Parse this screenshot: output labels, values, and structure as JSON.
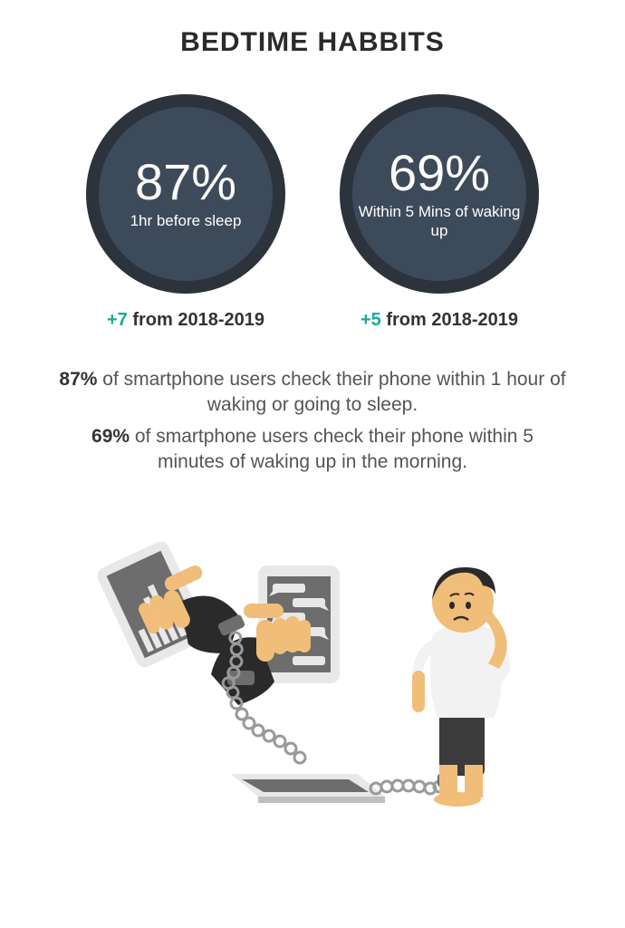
{
  "title": "BEDTIME HABBITS",
  "title_color": "#2a2a2a",
  "circles": [
    {
      "pct": "87%",
      "label": "1hr before sleep",
      "delta_value": "+7",
      "delta_text": " from 2018-2019",
      "delta_value_color": "#1aa99a",
      "delta_text_color": "#333333",
      "outer_ring_color": "#2c333d",
      "inner_fill_color": "#3d4a5a",
      "ring_width": 14
    },
    {
      "pct": "69%",
      "label": "Within 5 Mins of waking up",
      "delta_value": "+5",
      "delta_text": " from 2018-2019",
      "delta_value_color": "#1aa99a",
      "delta_text_color": "#333333",
      "outer_ring_color": "#2c333d",
      "inner_fill_color": "#3d4a5a",
      "ring_width": 14
    }
  ],
  "body": {
    "line1_pct": "87%",
    "line1_rest": " of smartphone users check their phone within 1 hour of waking or going to sleep.",
    "line2_pct": "69%",
    "line2_rest": " of smartphone users check their phone within 5 minutes of waking up in the morning.",
    "text_color": "#555555",
    "pct_color": "#333333"
  },
  "illustration": {
    "skin": "#f0be78",
    "shirt": "#f2f2f2",
    "shorts": "#3b3b3b",
    "sleeve_dark": "#2a2a2a",
    "phone_body": "#e8e8e8",
    "phone_screen": "#6d6d6d",
    "tablet_body": "#e8e8e8",
    "tablet_side": "#bfbfbf",
    "chain": "#9a9a9a",
    "hair": "#2a2a2a"
  }
}
